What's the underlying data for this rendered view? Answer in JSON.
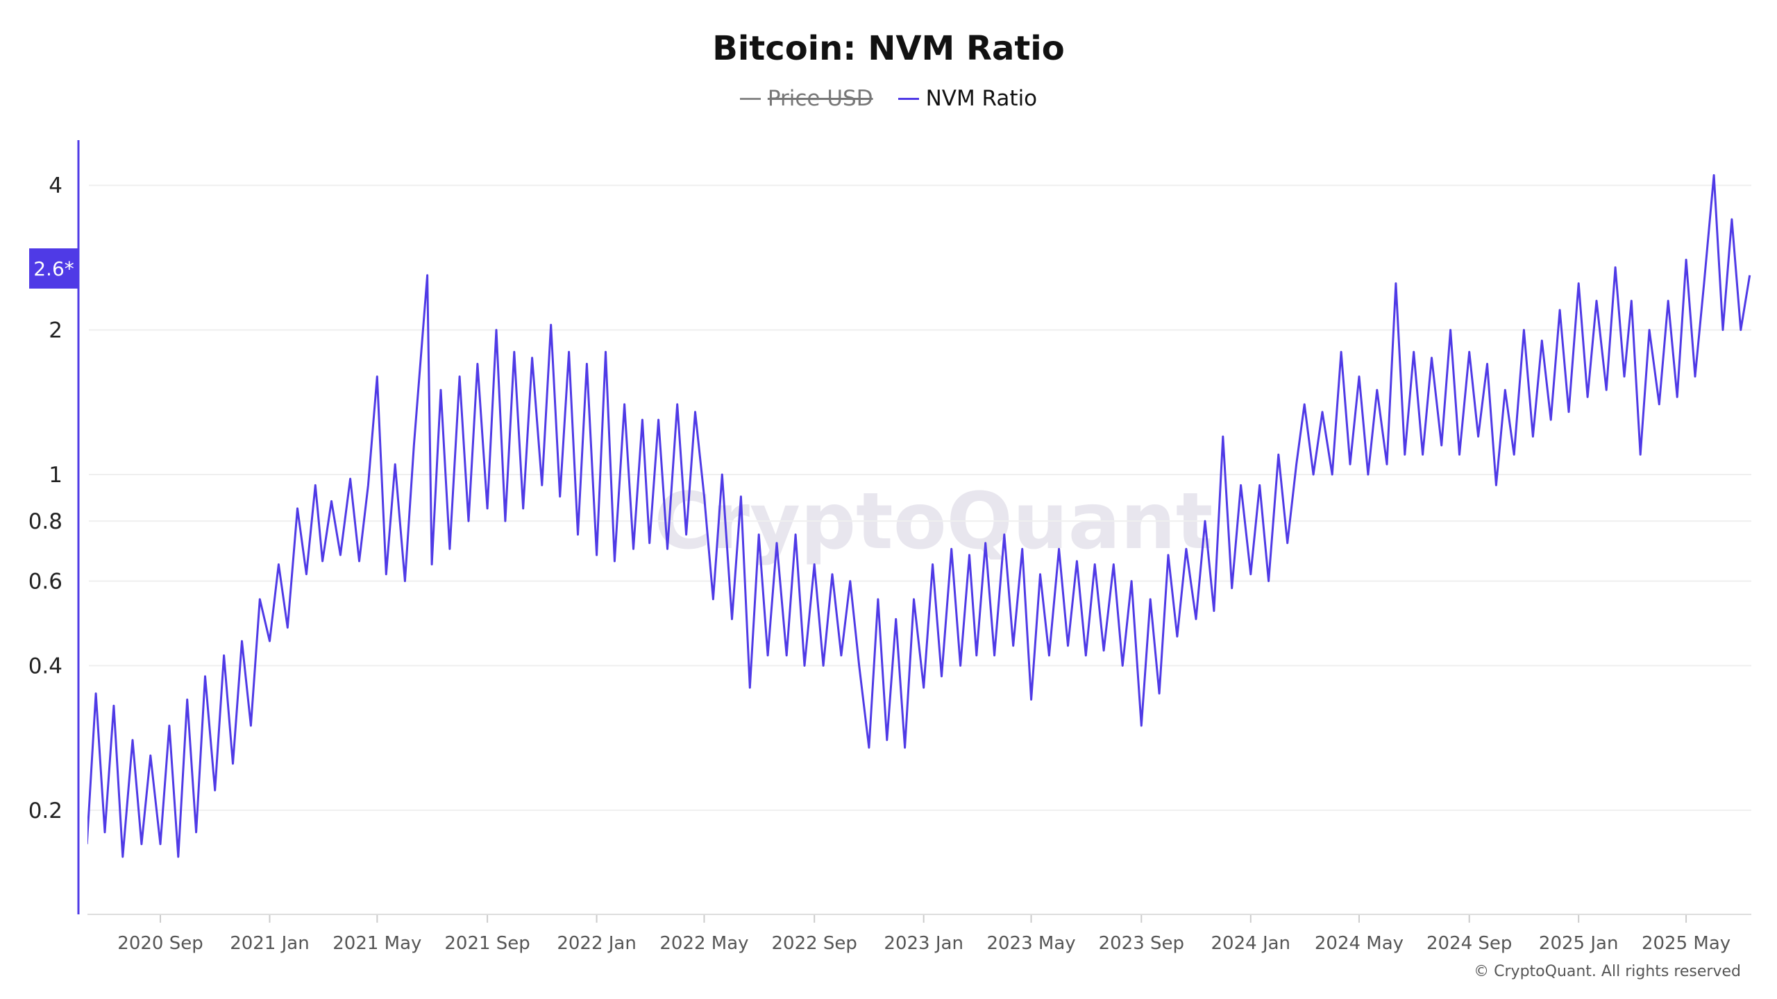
{
  "colors": {
    "series": "#4f3ae6",
    "legend_off": "#888888",
    "grid": "#efefef",
    "axis": "#dddddd",
    "watermark": "#d9d6e2"
  },
  "watermark": "CryptoQuant",
  "copyright": "© CryptoQuant. All rights reserved",
  "chart_data": {
    "type": "line",
    "title": "Bitcoin: NVM Ratio",
    "legend": [
      {
        "name": "Price USD",
        "hidden": true,
        "color": "#888888"
      },
      {
        "name": "NVM Ratio",
        "hidden": false,
        "color": "#4f3ae6"
      }
    ],
    "y_scale": "log",
    "ylim": [
      0.121,
      4.97
    ],
    "y_ticks": [
      "4",
      "2",
      "1",
      "0.8",
      "0.6",
      "0.4",
      "0.2"
    ],
    "current_value_label": "2.6*",
    "x_ticks": [
      "2020 Sep",
      "2021 Jan",
      "2021 May",
      "2021 Sep",
      "2022 Jan",
      "2022 May",
      "2022 Sep",
      "2023 Jan",
      "2023 May",
      "2023 Sep",
      "2024 Jan",
      "2024 May",
      "2024 Sep",
      "2025 Jan",
      "2025 May"
    ],
    "xlim": [
      "2020-06-09",
      "2025-07-13"
    ],
    "grid": true,
    "legend_position": "top",
    "series": [
      {
        "name": "NVM Ratio",
        "points": [
          [
            "2020-06-11",
            0.17
          ],
          [
            "2020-06-21",
            0.35
          ],
          [
            "2020-07-01",
            0.18
          ],
          [
            "2020-07-11",
            0.33
          ],
          [
            "2020-07-21",
            0.16
          ],
          [
            "2020-08-01",
            0.28
          ],
          [
            "2020-08-11",
            0.17
          ],
          [
            "2020-08-21",
            0.26
          ],
          [
            "2020-09-01",
            0.17
          ],
          [
            "2020-09-11",
            0.3
          ],
          [
            "2020-09-21",
            0.16
          ],
          [
            "2020-10-01",
            0.34
          ],
          [
            "2020-10-11",
            0.18
          ],
          [
            "2020-10-21",
            0.38
          ],
          [
            "2020-11-01",
            0.22
          ],
          [
            "2020-11-11",
            0.42
          ],
          [
            "2020-11-21",
            0.25
          ],
          [
            "2020-12-01",
            0.45
          ],
          [
            "2020-12-11",
            0.3
          ],
          [
            "2020-12-21",
            0.55
          ],
          [
            "2021-01-01",
            0.45
          ],
          [
            "2021-01-11",
            0.65
          ],
          [
            "2021-01-21",
            0.48
          ],
          [
            "2021-02-01",
            0.85
          ],
          [
            "2021-02-11",
            0.62
          ],
          [
            "2021-02-21",
            0.95
          ],
          [
            "2021-03-01",
            0.66
          ],
          [
            "2021-03-11",
            0.88
          ],
          [
            "2021-03-21",
            0.68
          ],
          [
            "2021-04-01",
            0.98
          ],
          [
            "2021-04-11",
            0.66
          ],
          [
            "2021-04-21",
            0.95
          ],
          [
            "2021-05-01",
            1.6
          ],
          [
            "2021-05-11",
            0.62
          ],
          [
            "2021-05-21",
            1.05
          ],
          [
            "2021-06-01",
            0.6
          ],
          [
            "2021-06-11",
            1.15
          ],
          [
            "2021-06-26",
            2.6
          ],
          [
            "2021-07-01",
            0.65
          ],
          [
            "2021-07-11",
            1.5
          ],
          [
            "2021-07-21",
            0.7
          ],
          [
            "2021-08-01",
            1.6
          ],
          [
            "2021-08-11",
            0.8
          ],
          [
            "2021-08-21",
            1.7
          ],
          [
            "2021-09-01",
            0.85
          ],
          [
            "2021-09-11",
            2.0
          ],
          [
            "2021-09-21",
            0.8
          ],
          [
            "2021-10-01",
            1.8
          ],
          [
            "2021-10-11",
            0.85
          ],
          [
            "2021-10-21",
            1.75
          ],
          [
            "2021-11-01",
            0.95
          ],
          [
            "2021-11-11",
            2.05
          ],
          [
            "2021-11-21",
            0.9
          ],
          [
            "2021-12-01",
            1.8
          ],
          [
            "2021-12-11",
            0.75
          ],
          [
            "2021-12-21",
            1.7
          ],
          [
            "2022-01-01",
            0.68
          ],
          [
            "2022-01-11",
            1.8
          ],
          [
            "2022-01-21",
            0.66
          ],
          [
            "2022-02-01",
            1.4
          ],
          [
            "2022-02-11",
            0.7
          ],
          [
            "2022-02-21",
            1.3
          ],
          [
            "2022-03-01",
            0.72
          ],
          [
            "2022-03-11",
            1.3
          ],
          [
            "2022-03-21",
            0.7
          ],
          [
            "2022-04-01",
            1.4
          ],
          [
            "2022-04-11",
            0.75
          ],
          [
            "2022-04-21",
            1.35
          ],
          [
            "2022-05-01",
            0.9
          ],
          [
            "2022-05-11",
            0.55
          ],
          [
            "2022-05-21",
            1.0
          ],
          [
            "2022-06-01",
            0.5
          ],
          [
            "2022-06-11",
            0.9
          ],
          [
            "2022-06-21",
            0.36
          ],
          [
            "2022-07-01",
            0.75
          ],
          [
            "2022-07-11",
            0.42
          ],
          [
            "2022-07-21",
            0.72
          ],
          [
            "2022-08-01",
            0.42
          ],
          [
            "2022-08-11",
            0.75
          ],
          [
            "2022-08-21",
            0.4
          ],
          [
            "2022-09-01",
            0.65
          ],
          [
            "2022-09-11",
            0.4
          ],
          [
            "2022-09-21",
            0.62
          ],
          [
            "2022-10-01",
            0.42
          ],
          [
            "2022-10-11",
            0.6
          ],
          [
            "2022-10-21",
            0.4
          ],
          [
            "2022-11-01",
            0.27
          ],
          [
            "2022-11-11",
            0.55
          ],
          [
            "2022-11-21",
            0.28
          ],
          [
            "2022-12-01",
            0.5
          ],
          [
            "2022-12-11",
            0.27
          ],
          [
            "2022-12-21",
            0.55
          ],
          [
            "2023-01-01",
            0.36
          ],
          [
            "2023-01-11",
            0.65
          ],
          [
            "2023-01-21",
            0.38
          ],
          [
            "2023-02-01",
            0.7
          ],
          [
            "2023-02-11",
            0.4
          ],
          [
            "2023-02-21",
            0.68
          ],
          [
            "2023-03-01",
            0.42
          ],
          [
            "2023-03-11",
            0.72
          ],
          [
            "2023-03-21",
            0.42
          ],
          [
            "2023-04-01",
            0.75
          ],
          [
            "2023-04-11",
            0.44
          ],
          [
            "2023-04-21",
            0.7
          ],
          [
            "2023-05-01",
            0.34
          ],
          [
            "2023-05-11",
            0.62
          ],
          [
            "2023-05-21",
            0.42
          ],
          [
            "2023-06-01",
            0.7
          ],
          [
            "2023-06-11",
            0.44
          ],
          [
            "2023-06-21",
            0.66
          ],
          [
            "2023-07-01",
            0.42
          ],
          [
            "2023-07-11",
            0.65
          ],
          [
            "2023-07-21",
            0.43
          ],
          [
            "2023-08-01",
            0.65
          ],
          [
            "2023-08-11",
            0.4
          ],
          [
            "2023-08-21",
            0.6
          ],
          [
            "2023-09-01",
            0.3
          ],
          [
            "2023-09-11",
            0.55
          ],
          [
            "2023-09-21",
            0.35
          ],
          [
            "2023-10-01",
            0.68
          ],
          [
            "2023-10-11",
            0.46
          ],
          [
            "2023-10-21",
            0.7
          ],
          [
            "2023-11-01",
            0.5
          ],
          [
            "2023-11-11",
            0.8
          ],
          [
            "2023-11-21",
            0.52
          ],
          [
            "2023-12-01",
            1.2
          ],
          [
            "2023-12-11",
            0.58
          ],
          [
            "2023-12-21",
            0.95
          ],
          [
            "2024-01-01",
            0.62
          ],
          [
            "2024-01-11",
            0.95
          ],
          [
            "2024-01-21",
            0.6
          ],
          [
            "2024-02-01",
            1.1
          ],
          [
            "2024-02-11",
            0.72
          ],
          [
            "2024-02-21",
            1.05
          ],
          [
            "2024-03-01",
            1.4
          ],
          [
            "2024-03-11",
            1.0
          ],
          [
            "2024-03-21",
            1.35
          ],
          [
            "2024-04-01",
            1.0
          ],
          [
            "2024-04-11",
            1.8
          ],
          [
            "2024-04-21",
            1.05
          ],
          [
            "2024-05-01",
            1.6
          ],
          [
            "2024-05-11",
            1.0
          ],
          [
            "2024-05-21",
            1.5
          ],
          [
            "2024-06-01",
            1.05
          ],
          [
            "2024-06-11",
            2.5
          ],
          [
            "2024-06-21",
            1.1
          ],
          [
            "2024-07-01",
            1.8
          ],
          [
            "2024-07-11",
            1.1
          ],
          [
            "2024-07-21",
            1.75
          ],
          [
            "2024-08-01",
            1.15
          ],
          [
            "2024-08-11",
            2.0
          ],
          [
            "2024-08-21",
            1.1
          ],
          [
            "2024-09-01",
            1.8
          ],
          [
            "2024-09-11",
            1.2
          ],
          [
            "2024-09-21",
            1.7
          ],
          [
            "2024-10-01",
            0.95
          ],
          [
            "2024-10-11",
            1.5
          ],
          [
            "2024-10-21",
            1.1
          ],
          [
            "2024-11-01",
            2.0
          ],
          [
            "2024-11-11",
            1.2
          ],
          [
            "2024-11-21",
            1.9
          ],
          [
            "2024-12-01",
            1.3
          ],
          [
            "2024-12-11",
            2.2
          ],
          [
            "2024-12-21",
            1.35
          ],
          [
            "2025-01-01",
            2.5
          ],
          [
            "2025-01-11",
            1.45
          ],
          [
            "2025-01-21",
            2.3
          ],
          [
            "2025-02-01",
            1.5
          ],
          [
            "2025-02-11",
            2.7
          ],
          [
            "2025-02-21",
            1.6
          ],
          [
            "2025-03-01",
            2.3
          ],
          [
            "2025-03-11",
            1.1
          ],
          [
            "2025-03-21",
            2.0
          ],
          [
            "2025-04-01",
            1.4
          ],
          [
            "2025-04-11",
            2.3
          ],
          [
            "2025-04-21",
            1.45
          ],
          [
            "2025-05-01",
            2.8
          ],
          [
            "2025-05-11",
            1.6
          ],
          [
            "2025-05-21",
            2.5
          ],
          [
            "2025-06-01",
            4.2
          ],
          [
            "2025-06-11",
            2.0
          ],
          [
            "2025-06-21",
            3.4
          ],
          [
            "2025-07-01",
            2.0
          ],
          [
            "2025-07-11",
            2.6
          ]
        ]
      }
    ]
  }
}
